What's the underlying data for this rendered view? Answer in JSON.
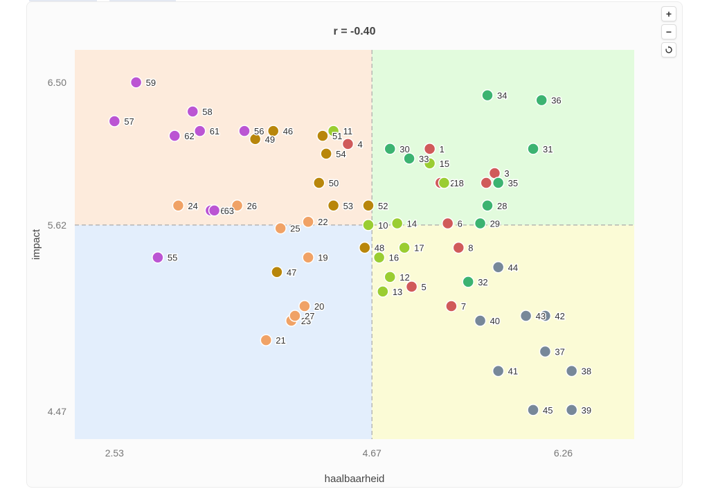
{
  "zoom_controls": {
    "zoom_in": "+",
    "zoom_out": "−",
    "reset_icon": "reset-icon"
  },
  "colors": {
    "quadrant_top_left": "#fdebdc",
    "quadrant_top_right": "#e2fbdd",
    "quadrant_bottom_left": "#e3eefc",
    "quadrant_bottom_right": "#fbfbd6",
    "purple": "#bb55d3",
    "dark_gold": "#b8860b",
    "orange": "#f0a266",
    "lime": "#9acd32",
    "red": "#d05a5a",
    "green": "#3cb371",
    "slate": "#778899"
  },
  "chart_data": {
    "type": "scatter",
    "title": "r = -0.40",
    "xlabel": "haalbaarheid",
    "ylabel": "impact",
    "xlim": [
      2.2,
      6.85
    ],
    "ylim": [
      4.3,
      6.7
    ],
    "xticks": [
      2.53,
      4.67,
      6.26
    ],
    "yticks": [
      4.47,
      5.62,
      6.5
    ],
    "xtick_labels": [
      "2.53",
      "4.67",
      "6.26"
    ],
    "ytick_labels": [
      "4.47",
      "5.62",
      "6.50"
    ],
    "reference_lines": {
      "x": 4.67,
      "y": 5.62
    },
    "points": [
      {
        "id": "1",
        "x": 5.15,
        "y": 6.09,
        "color": "red"
      },
      {
        "id": "2",
        "x": 5.24,
        "y": 5.88,
        "color": "red"
      },
      {
        "id": "3",
        "x": 5.69,
        "y": 5.94,
        "color": "red"
      },
      {
        "id": "4",
        "x": 4.47,
        "y": 6.12,
        "color": "red"
      },
      {
        "id": "5",
        "x": 5.0,
        "y": 5.24,
        "color": "red"
      },
      {
        "id": "6",
        "x": 5.3,
        "y": 5.63,
        "color": "red"
      },
      {
        "id": "7",
        "x": 5.33,
        "y": 5.12,
        "color": "red"
      },
      {
        "id": "8",
        "x": 5.39,
        "y": 5.48,
        "color": "red"
      },
      {
        "id": "9",
        "x": 5.62,
        "y": 5.88,
        "color": "red"
      },
      {
        "id": "10",
        "x": 4.64,
        "y": 5.62,
        "color": "lime"
      },
      {
        "id": "11",
        "x": 4.35,
        "y": 6.2,
        "color": "lime"
      },
      {
        "id": "12",
        "x": 4.82,
        "y": 5.3,
        "color": "lime"
      },
      {
        "id": "13",
        "x": 4.76,
        "y": 5.21,
        "color": "lime"
      },
      {
        "id": "14",
        "x": 4.88,
        "y": 5.63,
        "color": "lime"
      },
      {
        "id": "15",
        "x": 5.15,
        "y": 6.0,
        "color": "lime"
      },
      {
        "id": "16",
        "x": 4.73,
        "y": 5.42,
        "color": "lime"
      },
      {
        "id": "17",
        "x": 4.94,
        "y": 5.48,
        "color": "lime"
      },
      {
        "id": "18",
        "x": 5.27,
        "y": 5.88,
        "color": "lime"
      },
      {
        "id": "19",
        "x": 4.14,
        "y": 5.42,
        "color": "orange"
      },
      {
        "id": "20",
        "x": 4.11,
        "y": 5.12,
        "color": "orange"
      },
      {
        "id": "21",
        "x": 3.79,
        "y": 4.91,
        "color": "orange"
      },
      {
        "id": "22",
        "x": 4.14,
        "y": 5.64,
        "color": "orange"
      },
      {
        "id": "23",
        "x": 4.0,
        "y": 5.03,
        "color": "orange"
      },
      {
        "id": "24",
        "x": 3.06,
        "y": 5.74,
        "color": "orange"
      },
      {
        "id": "25",
        "x": 3.91,
        "y": 5.6,
        "color": "orange"
      },
      {
        "id": "26",
        "x": 3.55,
        "y": 5.74,
        "color": "orange"
      },
      {
        "id": "27",
        "x": 4.03,
        "y": 5.06,
        "color": "orange"
      },
      {
        "id": "28",
        "x": 5.63,
        "y": 5.74,
        "color": "green"
      },
      {
        "id": "29",
        "x": 5.57,
        "y": 5.63,
        "color": "green"
      },
      {
        "id": "30",
        "x": 4.82,
        "y": 6.09,
        "color": "green"
      },
      {
        "id": "31",
        "x": 6.01,
        "y": 6.09,
        "color": "green"
      },
      {
        "id": "32",
        "x": 5.47,
        "y": 5.27,
        "color": "green"
      },
      {
        "id": "33",
        "x": 4.98,
        "y": 6.03,
        "color": "green"
      },
      {
        "id": "34",
        "x": 5.63,
        "y": 6.42,
        "color": "green"
      },
      {
        "id": "35",
        "x": 5.72,
        "y": 5.88,
        "color": "green"
      },
      {
        "id": "36",
        "x": 6.08,
        "y": 6.39,
        "color": "green"
      },
      {
        "id": "37",
        "x": 6.11,
        "y": 4.84,
        "color": "slate"
      },
      {
        "id": "38",
        "x": 6.33,
        "y": 4.72,
        "color": "slate"
      },
      {
        "id": "39",
        "x": 6.33,
        "y": 4.48,
        "color": "slate"
      },
      {
        "id": "40",
        "x": 5.57,
        "y": 5.03,
        "color": "slate"
      },
      {
        "id": "41",
        "x": 5.72,
        "y": 4.72,
        "color": "slate"
      },
      {
        "id": "42",
        "x": 6.11,
        "y": 5.06,
        "color": "slate"
      },
      {
        "id": "43",
        "x": 5.95,
        "y": 5.06,
        "color": "slate"
      },
      {
        "id": "44",
        "x": 5.72,
        "y": 5.36,
        "color": "slate"
      },
      {
        "id": "45",
        "x": 6.01,
        "y": 4.48,
        "color": "slate"
      },
      {
        "id": "46",
        "x": 3.85,
        "y": 6.2,
        "color": "dark_gold"
      },
      {
        "id": "47",
        "x": 3.88,
        "y": 5.33,
        "color": "dark_gold"
      },
      {
        "id": "48",
        "x": 4.61,
        "y": 5.48,
        "color": "dark_gold"
      },
      {
        "id": "49",
        "x": 3.7,
        "y": 6.15,
        "color": "dark_gold"
      },
      {
        "id": "50",
        "x": 4.23,
        "y": 5.88,
        "color": "dark_gold"
      },
      {
        "id": "51",
        "x": 4.26,
        "y": 6.17,
        "color": "dark_gold"
      },
      {
        "id": "52",
        "x": 4.64,
        "y": 5.74,
        "color": "dark_gold"
      },
      {
        "id": "53",
        "x": 4.35,
        "y": 5.74,
        "color": "dark_gold"
      },
      {
        "id": "54",
        "x": 4.29,
        "y": 6.06,
        "color": "dark_gold"
      },
      {
        "id": "55",
        "x": 2.89,
        "y": 5.42,
        "color": "purple"
      },
      {
        "id": "56",
        "x": 3.61,
        "y": 6.2,
        "color": "purple"
      },
      {
        "id": "57",
        "x": 2.53,
        "y": 6.26,
        "color": "purple"
      },
      {
        "id": "58",
        "x": 3.18,
        "y": 6.32,
        "color": "purple"
      },
      {
        "id": "59",
        "x": 2.71,
        "y": 6.5,
        "color": "purple"
      },
      {
        "id": "60",
        "x": 3.33,
        "y": 5.71,
        "color": "purple"
      },
      {
        "id": "61",
        "x": 3.24,
        "y": 6.2,
        "color": "purple"
      },
      {
        "id": "62",
        "x": 3.03,
        "y": 6.17,
        "color": "purple"
      },
      {
        "id": "63",
        "x": 3.36,
        "y": 5.71,
        "color": "purple"
      }
    ]
  }
}
